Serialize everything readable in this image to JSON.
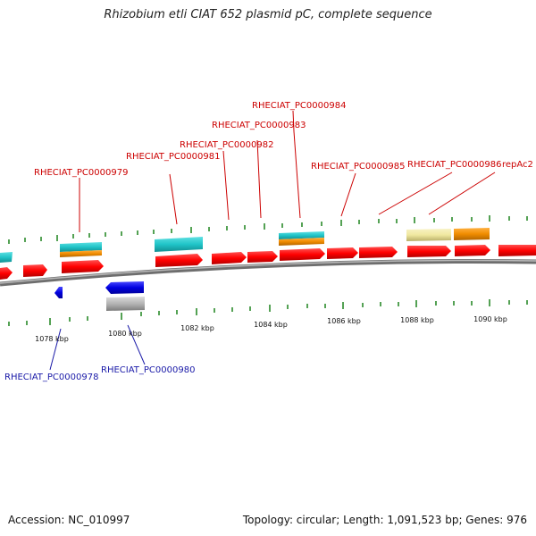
{
  "title": "Rhizobium etli CIAT 652 plasmid pC, complete sequence",
  "footer": {
    "accession": "Accession: NC_010997",
    "summary": "Topology: circular; Length: 1,091,523 bp; Genes: 976"
  },
  "scale_labels": [
    "1078 kbp",
    "1080 kbp",
    "1082 kbp",
    "1084 kbp",
    "1086 kbp",
    "1088 kbp",
    "1090 kbp"
  ],
  "forward_gene_labels": [
    "RHECIAT_PC0000979",
    "RHECIAT_PC0000981",
    "RHECIAT_PC0000982",
    "RHECIAT_PC0000983",
    "RHECIAT_PC0000984",
    "RHECIAT_PC0000985",
    "RHECIAT_PC0000986",
    "repAc2"
  ],
  "reverse_gene_labels": [
    "RHECIAT_PC0000978",
    "RHECIAT_PC0000980"
  ],
  "colors": {
    "cds": "#ff0000",
    "cog_cyan": "#20c4c8",
    "cog_orange": "#f08c00",
    "cog_khaki": "#f0e8a0",
    "reverse_cds": "#0000e0",
    "reverse_gray": "#b4b4b4",
    "backbone": "#8a8a8a",
    "tick": "#2a8a2a",
    "label_forward": "#cc0000",
    "label_reverse": "#1a1aa8"
  }
}
